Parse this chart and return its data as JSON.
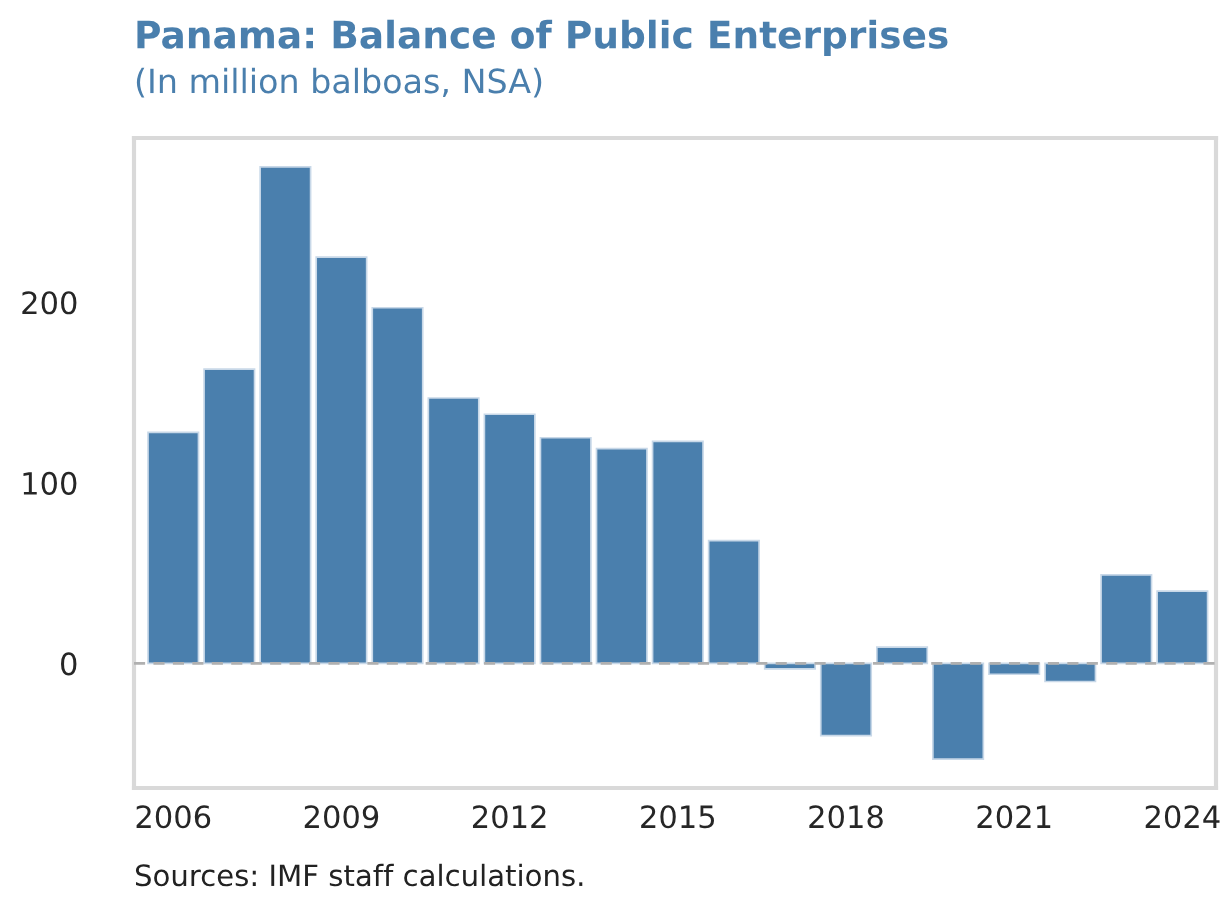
{
  "chart_data": {
    "type": "bar",
    "title": "Panama: Balance of Public Enterprises",
    "subtitle": "(In million balboas, NSA)",
    "x": [
      2006,
      2007,
      2008,
      2009,
      2010,
      2011,
      2012,
      2013,
      2014,
      2015,
      2016,
      2017,
      2018,
      2019,
      2020,
      2021,
      2022,
      2023,
      2024
    ],
    "series": [
      {
        "color": "#4a7fad",
        "values": [
          128,
          163,
          275,
          225,
          197,
          147,
          138,
          125,
          119,
          123,
          68,
          -3,
          -40,
          9,
          -53,
          -6,
          -10,
          49,
          40
        ]
      }
    ],
    "xlim": [
      2005.3,
      2024.6
    ],
    "xticks": [
      2006,
      2009,
      2012,
      2015,
      2018,
      2021,
      2024
    ],
    "ylim": [
      -69,
      291
    ],
    "yticks": [
      0,
      100,
      200
    ],
    "ref_lines": [
      {
        "axis": "y",
        "value": 0,
        "color": "#b0b0b0",
        "line_style": "dashed"
      }
    ],
    "grid": false,
    "legend": false,
    "annotations": [
      "Sources: IMF staff calculations."
    ]
  }
}
